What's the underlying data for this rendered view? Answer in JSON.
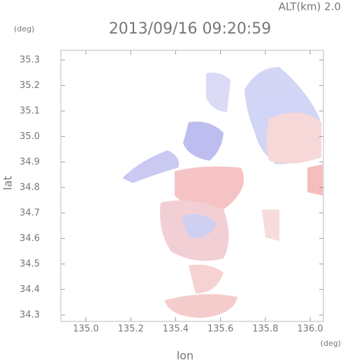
{
  "chart_data": {
    "type": "map",
    "title": "2013/09/16 09:20:59",
    "altitude_label": "ALT(km)  2.0",
    "y_unit": "(deg)",
    "x_unit": "(deg)",
    "xlabel": "lon",
    "ylabel": "lat",
    "xlim": [
      134.888,
      136.059
    ],
    "ylim": [
      34.275,
      35.338
    ],
    "xticks": [
      {
        "value": 135.0,
        "label": "135.0"
      },
      135.2,
      135.4,
      135.6,
      135.8,
      {
        "value": 136.0,
        "label": "136.0"
      }
    ],
    "yticks": [
      34.3,
      34.4,
      34.5,
      34.6,
      34.7,
      34.8,
      34.9,
      {
        "value": 35.0,
        "label": "35.0"
      },
      35.1,
      35.2,
      35.3
    ]
  }
}
